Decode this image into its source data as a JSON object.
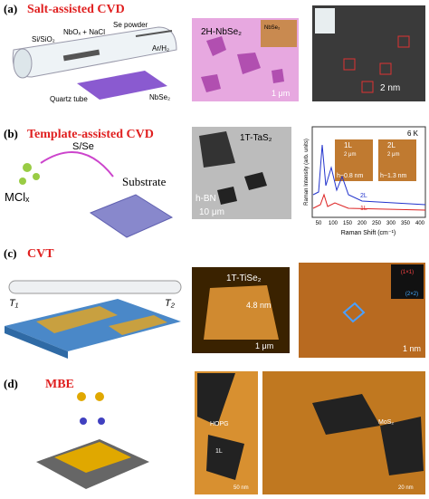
{
  "panels": [
    {
      "label": "(a)",
      "title": "Salt-assisted CVD",
      "texts": [
        "Si/SiO₂",
        "NbOₓ + NaCl",
        "Se powder",
        "Ar/H₂",
        "Quartz tube",
        "NbSe₂",
        "2H-NbSe₂",
        "NbSe₂",
        "1 μm",
        "2 nm"
      ]
    },
    {
      "label": "(b)",
      "title": "Template-assisted CVD",
      "texts": [
        "S/Se",
        "MClₓ",
        "Substrate",
        "1T-TaS₂",
        "h-BN",
        "10 μm",
        "6 K",
        "1L",
        "2L",
        "2 μm",
        "2 μm",
        "h~0.8 nm",
        "h~1.3 nm",
        "2L",
        "1L"
      ],
      "plot": {
        "ylabel": "Raman Intensity (arb. units)",
        "xlabel": "Raman Shift (cm⁻¹)",
        "xticks": [
          "50",
          "100",
          "150",
          "200",
          "250",
          "300",
          "350",
          "400"
        ]
      }
    },
    {
      "label": "(c)",
      "title": "CVT",
      "texts": [
        "T₁",
        "T₂",
        "1T-TiSe₂",
        "4.8 nm",
        "1 μm",
        "(1×1)",
        "(2×2)",
        "1 nm"
      ]
    },
    {
      "label": "(d)",
      "title": "MBE",
      "texts": [
        "HOPG",
        "1L",
        "50 nm",
        "MoS₂",
        "20 nm"
      ]
    }
  ]
}
